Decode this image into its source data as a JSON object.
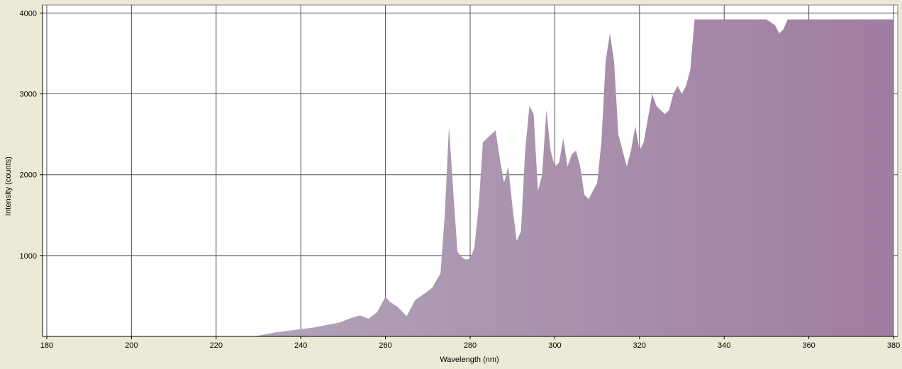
{
  "chart_data": {
    "type": "area",
    "xlabel": "Wavelength (nm)",
    "ylabel": "Intensity (counts)",
    "xlim": [
      179,
      381
    ],
    "ylim": [
      0,
      4100
    ],
    "x_ticks": [
      180,
      200,
      220,
      240,
      260,
      280,
      300,
      320,
      340,
      360,
      380
    ],
    "y_ticks": [
      1000,
      2000,
      3000,
      4000
    ],
    "x_tick_labels": [
      "180",
      "200",
      "220",
      "240",
      "260",
      "280",
      "300",
      "320",
      "340",
      "360",
      "380"
    ],
    "y_tick_labels": [
      "1000",
      "2000",
      "3000",
      "4000"
    ],
    "grid": true,
    "fill_gradient": [
      "#b8b0c0",
      "#a07da0"
    ],
    "series": [
      {
        "x": [
          180,
          229,
          231,
          234,
          237,
          240,
          243,
          246,
          249,
          252,
          254,
          256,
          258,
          260,
          261,
          263,
          265,
          267,
          269,
          271,
          273,
          274,
          275,
          276,
          277,
          278,
          279,
          280,
          281,
          282,
          283,
          285,
          286,
          287,
          288,
          289,
          290,
          291,
          292,
          293,
          294,
          295,
          296,
          297,
          298,
          299,
          300,
          301,
          302,
          303,
          304,
          305,
          306,
          307,
          308,
          309,
          310,
          311,
          312,
          313,
          314,
          315,
          316,
          317,
          318,
          319,
          320,
          321,
          322,
          323,
          324,
          325,
          326,
          327,
          328,
          329,
          330,
          331,
          332,
          333,
          340,
          345,
          350,
          352,
          353,
          354,
          355,
          356,
          360,
          370,
          380
        ],
        "y": [
          0,
          0,
          20,
          50,
          70,
          90,
          110,
          140,
          170,
          230,
          260,
          220,
          300,
          490,
          430,
          360,
          250,
          450,
          520,
          600,
          780,
          1500,
          2600,
          1800,
          1050,
          980,
          950,
          960,
          1100,
          1600,
          2400,
          2500,
          2550,
          2200,
          1900,
          2100,
          1600,
          1180,
          1300,
          2300,
          2850,
          2750,
          1800,
          2000,
          2800,
          2300,
          2100,
          2150,
          2450,
          2100,
          2250,
          2300,
          2100,
          1750,
          1700,
          1800,
          1900,
          2400,
          3400,
          3750,
          3400,
          2500,
          2300,
          2100,
          2300,
          2600,
          2300,
          2400,
          2700,
          3000,
          2850,
          2800,
          2750,
          2800,
          3000,
          3100,
          3000,
          3100,
          3300,
          3920,
          3920,
          3920,
          3920,
          3850,
          3750,
          3800,
          3920,
          3920,
          3920,
          3920,
          3920
        ]
      }
    ]
  }
}
